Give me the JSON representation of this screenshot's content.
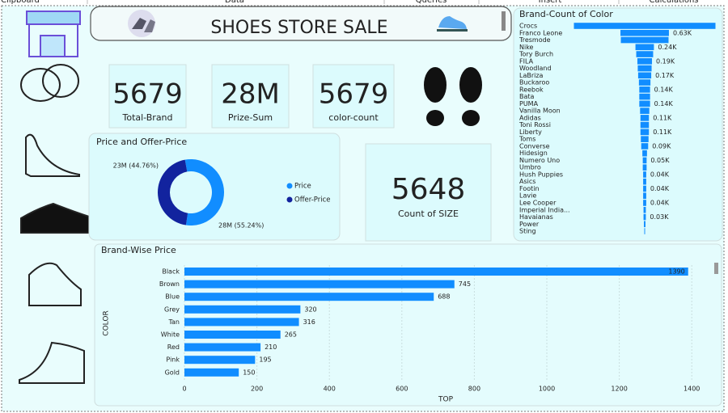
{
  "ribbon": [
    "Clipboard",
    "Data",
    "Queries",
    "Insert",
    "Calculations"
  ],
  "header": {
    "title": "SHOES STORE SALE"
  },
  "cards": [
    {
      "value": 5679,
      "label": "Total-Brand"
    },
    {
      "value": "28M",
      "label": "Prize-Sum"
    },
    {
      "value": 5679,
      "label": "color-count"
    },
    {
      "value": 5648,
      "label": "Count of SIZE"
    }
  ],
  "chart_data": [
    {
      "type": "pie",
      "donut": true,
      "title": "Price and Offer-Price",
      "categories": [
        "Price",
        "Offer-Price"
      ],
      "values": [
        55.24,
        44.76
      ],
      "value_labels": [
        "28M (55.24%)",
        "23M (44.76%)"
      ],
      "colors": [
        "#118dff",
        "#12239e"
      ],
      "legend": "right"
    },
    {
      "type": "funnel",
      "title": "Brand-Count of Color",
      "color": "#118dff",
      "categories": [
        "Crocs",
        "Franco Leone",
        "Tresmode",
        "Nike",
        "Tory Burch",
        "FILA",
        "Woodland",
        "LaBriza",
        "Buckaroo",
        "Reebok",
        "Bata",
        "PUMA",
        "Vanilla Moon",
        "Adidas",
        "Toni Rossi",
        "Liberty",
        "Toms",
        "Converse",
        "Hidesign",
        "Numero Uno",
        "Umbro",
        "Hush Puppies",
        "Asics",
        "Footin",
        "Lavie",
        "Lee Cooper",
        "Imperial India...",
        "Havaianas",
        "Power",
        "Sting"
      ],
      "values": [
        1840,
        630,
        620,
        240,
        220,
        190,
        180,
        170,
        150,
        140,
        140,
        140,
        120,
        110,
        110,
        110,
        100,
        90,
        60,
        50,
        50,
        40,
        40,
        40,
        40,
        40,
        30,
        30,
        20,
        10
      ],
      "value_labels": [
        null,
        "0.63K",
        null,
        "0.24K",
        null,
        "0.19K",
        null,
        "0.17K",
        null,
        "0.14K",
        null,
        "0.14K",
        null,
        "0.11K",
        null,
        "0.11K",
        null,
        "0.09K",
        null,
        "0.05K",
        null,
        "0.04K",
        null,
        "0.04K",
        null,
        "0.04K",
        null,
        "0.03K",
        null,
        null
      ]
    },
    {
      "type": "bar",
      "orientation": "horizontal",
      "title": "Brand-Wise Price",
      "color": "#118dff",
      "x_label": "TOP",
      "y_label": "COLOR",
      "categories": [
        "Black",
        "Brown",
        "Blue",
        "Grey",
        "Tan",
        "White",
        "Red",
        "Pink",
        "Gold"
      ],
      "values": [
        1390,
        745,
        688,
        320,
        316,
        265,
        210,
        195,
        150
      ],
      "xlim": [
        0,
        1433
      ],
      "xticks": [
        0,
        200,
        400,
        600,
        800,
        1000,
        1200,
        1400
      ],
      "grid": true
    }
  ]
}
